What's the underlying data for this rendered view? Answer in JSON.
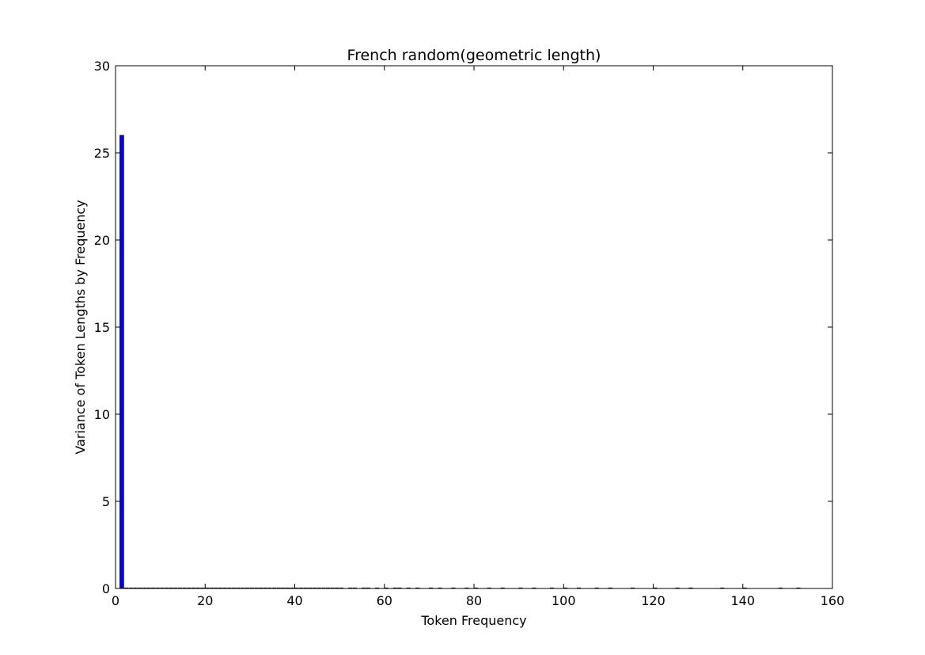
{
  "chart_data": {
    "type": "bar",
    "title": "French random(geometric length)",
    "xlabel": "Token Frequency",
    "ylabel": "Variance of Token Lengths by Frequency",
    "xlim": [
      0,
      160
    ],
    "ylim": [
      0,
      30
    ],
    "xticks": [
      0,
      20,
      40,
      60,
      80,
      100,
      120,
      140,
      160
    ],
    "yticks": [
      0,
      5,
      10,
      15,
      20,
      25,
      30
    ],
    "bar_width": 0.8,
    "grid": false,
    "bar_color": "#0000ff",
    "x": [
      1,
      2,
      3,
      4,
      5,
      6,
      7,
      8,
      9,
      10,
      11,
      12,
      13,
      14,
      15,
      16,
      17,
      18,
      19,
      20,
      21,
      22,
      23,
      24,
      25,
      26,
      27,
      28,
      29,
      30,
      31,
      32,
      33,
      34,
      35,
      36,
      37,
      38,
      39,
      40,
      41,
      42,
      43,
      44,
      45,
      46,
      47,
      48,
      49,
      50,
      52,
      53,
      55,
      56,
      58,
      60,
      62,
      63,
      65,
      67,
      70,
      72,
      75,
      78,
      80,
      83,
      86,
      90,
      93,
      97,
      100,
      103,
      107,
      110,
      115,
      120,
      125,
      128,
      135,
      140,
      148,
      152
    ],
    "values": [
      26,
      0,
      0,
      0,
      0,
      0,
      0,
      0,
      0,
      0,
      0,
      0,
      0,
      0,
      0,
      0,
      0,
      0,
      0,
      0,
      0,
      0,
      0,
      0,
      0,
      0,
      0,
      0,
      0,
      0,
      0,
      0,
      0,
      0,
      0,
      0,
      0,
      0,
      0,
      0,
      0,
      0,
      0,
      0,
      0,
      0,
      0,
      0,
      0,
      0,
      0,
      0,
      0,
      0,
      0,
      0,
      0,
      0,
      0,
      0,
      0,
      0,
      0,
      0,
      0,
      0,
      0,
      0,
      0,
      0,
      0,
      0,
      0,
      0,
      0,
      0,
      0,
      0,
      0,
      0,
      0,
      0
    ]
  }
}
